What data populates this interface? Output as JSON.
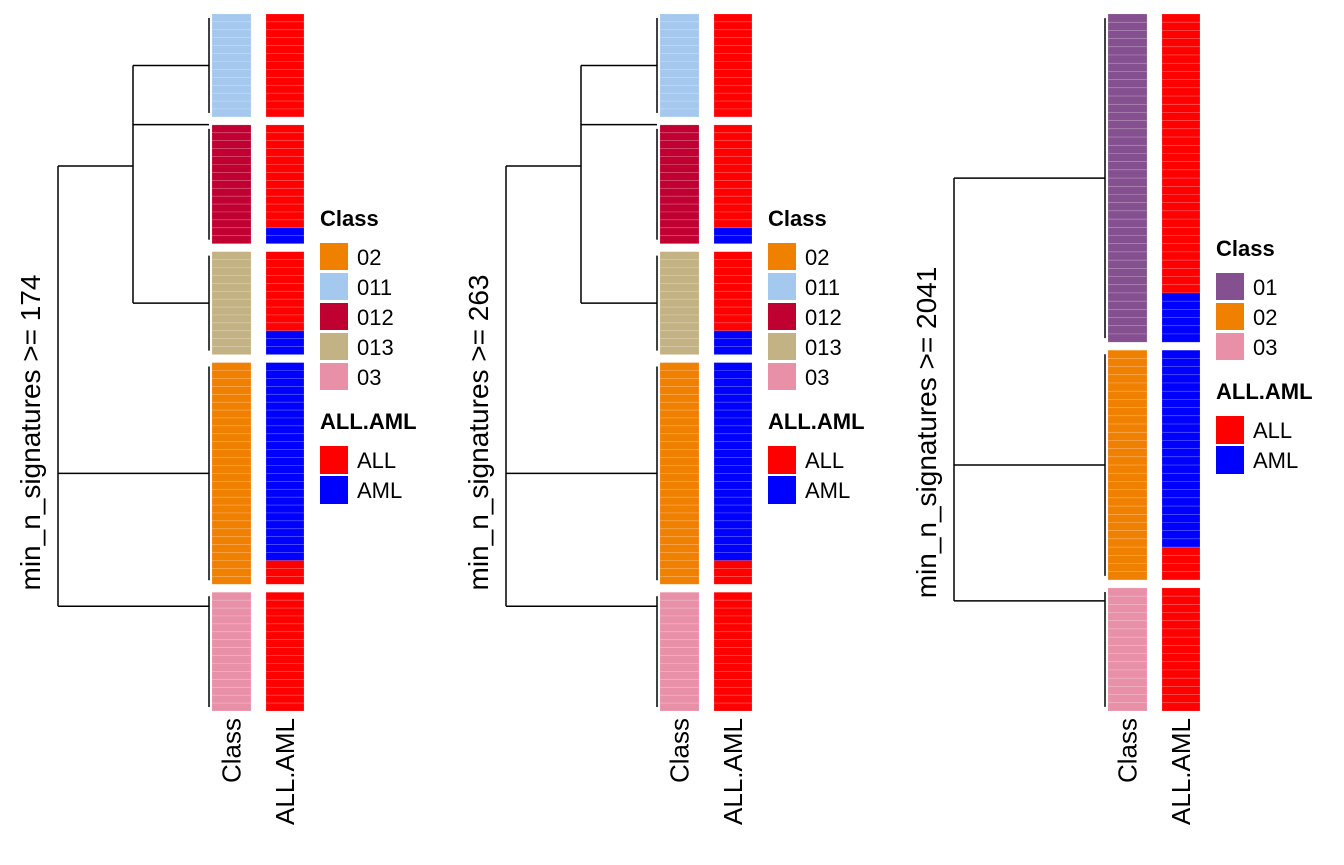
{
  "chart_data": [
    {
      "type": "heatmap",
      "title": "",
      "ylabel": "min_n_signatures >= 174",
      "columns": [
        "Class",
        "ALL.AML"
      ],
      "groups": [
        {
          "class": "011",
          "rows": 13,
          "all_aml": [
            "ALL",
            "ALL",
            "ALL",
            "ALL",
            "ALL",
            "ALL",
            "ALL",
            "ALL",
            "ALL",
            "ALL",
            "ALL",
            "ALL",
            "ALL"
          ]
        },
        {
          "class": "012",
          "rows": 15,
          "all_aml": [
            "ALL",
            "ALL",
            "ALL",
            "ALL",
            "ALL",
            "ALL",
            "ALL",
            "ALL",
            "ALL",
            "ALL",
            "ALL",
            "ALL",
            "ALL",
            "AML",
            "AML"
          ]
        },
        {
          "class": "013",
          "rows": 13,
          "all_aml": [
            "ALL",
            "ALL",
            "ALL",
            "ALL",
            "ALL",
            "ALL",
            "ALL",
            "ALL",
            "ALL",
            "ALL",
            "AML",
            "AML",
            "AML"
          ]
        },
        {
          "class": "02",
          "rows": 28,
          "all_aml": [
            "AML",
            "AML",
            "AML",
            "AML",
            "AML",
            "AML",
            "AML",
            "AML",
            "AML",
            "AML",
            "AML",
            "AML",
            "AML",
            "AML",
            "AML",
            "AML",
            "AML",
            "AML",
            "AML",
            "AML",
            "AML",
            "AML",
            "AML",
            "AML",
            "AML",
            "ALL",
            "ALL",
            "ALL"
          ]
        },
        {
          "class": "03",
          "rows": 15,
          "all_aml": [
            "ALL",
            "ALL",
            "ALL",
            "ALL",
            "ALL",
            "ALL",
            "ALL",
            "ALL",
            "ALL",
            "ALL",
            "ALL",
            "ALL",
            "ALL",
            "ALL",
            "ALL"
          ]
        }
      ],
      "legend": {
        "class_title": "Class",
        "class_items": [
          {
            "label": "02",
            "color": "#F08000"
          },
          {
            "label": "011",
            "color": "#A4C8EE"
          },
          {
            "label": "012",
            "color": "#C00030"
          },
          {
            "label": "013",
            "color": "#C3B283"
          },
          {
            "label": "03",
            "color": "#E890A8"
          }
        ],
        "allaml_title": "ALL.AML",
        "allaml_items": [
          {
            "label": "ALL",
            "color": "#FF0000"
          },
          {
            "label": "AML",
            "color": "#0000FF"
          }
        ]
      }
    },
    {
      "type": "heatmap",
      "title": "",
      "ylabel": "min_n_signatures >= 263",
      "columns": [
        "Class",
        "ALL.AML"
      ],
      "groups": [
        {
          "class": "011",
          "rows": 13,
          "all_aml": [
            "ALL",
            "ALL",
            "ALL",
            "ALL",
            "ALL",
            "ALL",
            "ALL",
            "ALL",
            "ALL",
            "ALL",
            "ALL",
            "ALL",
            "ALL"
          ]
        },
        {
          "class": "012",
          "rows": 15,
          "all_aml": [
            "ALL",
            "ALL",
            "ALL",
            "ALL",
            "ALL",
            "ALL",
            "ALL",
            "ALL",
            "ALL",
            "ALL",
            "ALL",
            "ALL",
            "ALL",
            "AML",
            "AML"
          ]
        },
        {
          "class": "013",
          "rows": 13,
          "all_aml": [
            "ALL",
            "ALL",
            "ALL",
            "ALL",
            "ALL",
            "ALL",
            "ALL",
            "ALL",
            "ALL",
            "ALL",
            "AML",
            "AML",
            "AML"
          ]
        },
        {
          "class": "02",
          "rows": 28,
          "all_aml": [
            "AML",
            "AML",
            "AML",
            "AML",
            "AML",
            "AML",
            "AML",
            "AML",
            "AML",
            "AML",
            "AML",
            "AML",
            "AML",
            "AML",
            "AML",
            "AML",
            "AML",
            "AML",
            "AML",
            "AML",
            "AML",
            "AML",
            "AML",
            "AML",
            "AML",
            "ALL",
            "ALL",
            "ALL"
          ]
        },
        {
          "class": "03",
          "rows": 15,
          "all_aml": [
            "ALL",
            "ALL",
            "ALL",
            "ALL",
            "ALL",
            "ALL",
            "ALL",
            "ALL",
            "ALL",
            "ALL",
            "ALL",
            "ALL",
            "ALL",
            "ALL",
            "ALL"
          ]
        }
      ],
      "legend": {
        "class_title": "Class",
        "class_items": [
          {
            "label": "02",
            "color": "#F08000"
          },
          {
            "label": "011",
            "color": "#A4C8EE"
          },
          {
            "label": "012",
            "color": "#C00030"
          },
          {
            "label": "013",
            "color": "#C3B283"
          },
          {
            "label": "03",
            "color": "#E890A8"
          }
        ],
        "allaml_title": "ALL.AML",
        "allaml_items": [
          {
            "label": "ALL",
            "color": "#FF0000"
          },
          {
            "label": "AML",
            "color": "#0000FF"
          }
        ]
      }
    },
    {
      "type": "heatmap",
      "title": "",
      "ylabel": "min_n_signatures >= 2041",
      "columns": [
        "Class",
        "ALL.AML"
      ],
      "groups": [
        {
          "class": "01",
          "rows": 40,
          "all_aml": [
            "ALL",
            "ALL",
            "ALL",
            "ALL",
            "ALL",
            "ALL",
            "ALL",
            "ALL",
            "ALL",
            "ALL",
            "ALL",
            "ALL",
            "ALL",
            "ALL",
            "ALL",
            "ALL",
            "ALL",
            "ALL",
            "ALL",
            "ALL",
            "ALL",
            "ALL",
            "ALL",
            "ALL",
            "ALL",
            "ALL",
            "ALL",
            "ALL",
            "ALL",
            "ALL",
            "ALL",
            "ALL",
            "ALL",
            "ALL",
            "AML",
            "AML",
            "AML",
            "AML",
            "AML",
            "AML"
          ]
        },
        {
          "class": "02",
          "rows": 28,
          "all_aml": [
            "AML",
            "AML",
            "AML",
            "AML",
            "AML",
            "AML",
            "AML",
            "AML",
            "AML",
            "AML",
            "AML",
            "AML",
            "AML",
            "AML",
            "AML",
            "AML",
            "AML",
            "AML",
            "AML",
            "AML",
            "AML",
            "AML",
            "AML",
            "AML",
            "ALL",
            "ALL",
            "ALL",
            "ALL"
          ]
        },
        {
          "class": "03",
          "rows": 15,
          "all_aml": [
            "ALL",
            "ALL",
            "ALL",
            "ALL",
            "ALL",
            "ALL",
            "ALL",
            "ALL",
            "ALL",
            "ALL",
            "ALL",
            "ALL",
            "ALL",
            "ALL",
            "ALL"
          ]
        }
      ],
      "legend": {
        "class_title": "Class",
        "class_items": [
          {
            "label": "01",
            "color": "#85508F"
          },
          {
            "label": "02",
            "color": "#F08000"
          },
          {
            "label": "03",
            "color": "#E890A8"
          }
        ],
        "allaml_title": "ALL.AML",
        "allaml_items": [
          {
            "label": "ALL",
            "color": "#FF0000"
          },
          {
            "label": "AML",
            "color": "#0000FF"
          }
        ]
      }
    }
  ]
}
